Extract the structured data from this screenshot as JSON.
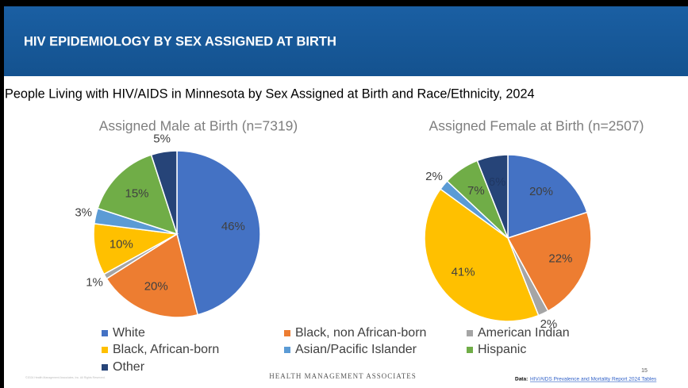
{
  "header": {
    "title": "HIV EPIDEMIOLOGY BY SEX ASSIGNED AT BIRTH"
  },
  "subtitle": "People Living with HIV/AIDS in Minnesota by Sex Assigned at Birth and Race/Ethnicity, 2024",
  "chart_data": [
    {
      "type": "pie",
      "title": "Assigned Male at Birth (n=7319)",
      "categories": [
        "White",
        "Black, non African-born",
        "American Indian",
        "Black, African-born",
        "Asian/Pacific Islander",
        "Hispanic",
        "Other"
      ],
      "values": [
        46,
        20,
        1,
        10,
        3,
        15,
        5
      ],
      "value_labels": [
        "46%",
        "20%",
        "1%",
        "10%",
        "3%",
        "15%",
        "5%"
      ],
      "colors": [
        "#4472c4",
        "#ed7d31",
        "#a5a5a5",
        "#ffc000",
        "#5b9bd5",
        "#70ad47",
        "#264478"
      ],
      "legend": "bottom"
    },
    {
      "type": "pie",
      "title": "Assigned Female at Birth (n=2507)",
      "categories": [
        "White",
        "Black, non African-born",
        "American Indian",
        "Black, African-born",
        "Asian/Pacific Islander",
        "Hispanic",
        "Other"
      ],
      "values": [
        20,
        22,
        2,
        41,
        2,
        7,
        6
      ],
      "value_labels": [
        "20%",
        "22%",
        "2%",
        "41%",
        "2%",
        "7%",
        "6%"
      ],
      "colors": [
        "#4472c4",
        "#ed7d31",
        "#a5a5a5",
        "#ffc000",
        "#5b9bd5",
        "#70ad47",
        "#264478"
      ]
    }
  ],
  "footer": {
    "copyright": "©2024 Health Management Associates, Inc. All Rights Reserved.",
    "brand": "Health Management Associates",
    "page_number": "15",
    "source_prefix": "Data:",
    "source_link": "HIV/AIDS Prevalence and Mortality Report 2024 Tables"
  }
}
